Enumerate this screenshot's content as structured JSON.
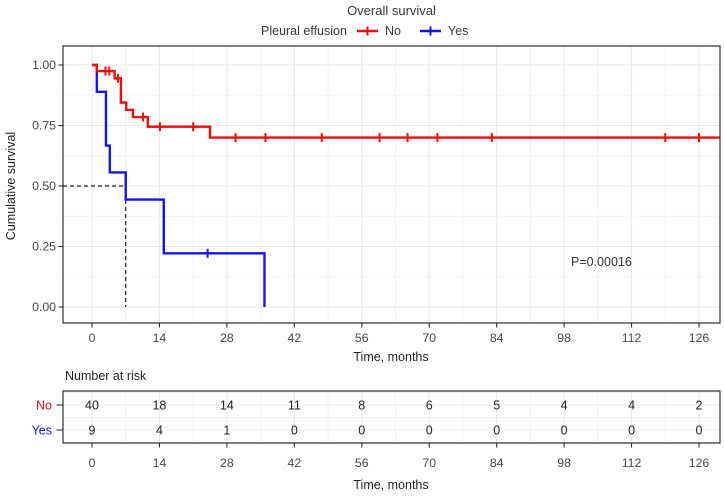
{
  "chart_data": {
    "type": "line",
    "subtype": "kaplan-meier-step-curve",
    "title": "Overall survival",
    "legend_title": "Pleural effusion",
    "legend_position": "top",
    "xlabel": "Time, months",
    "ylabel": "Cumulative survival",
    "x_ticks": [
      0,
      14,
      28,
      42,
      56,
      70,
      84,
      98,
      112,
      126
    ],
    "y_ticks": [
      0,
      0.25,
      0.5,
      0.75,
      1
    ],
    "y_tick_labels": [
      "0.00",
      "0.25",
      "0.50",
      "0.75",
      "1.00"
    ],
    "xlim": [
      -6,
      130.4
    ],
    "ylim": [
      0,
      1
    ],
    "grid": true,
    "pvalue_text": "P=0.00016",
    "median_line": {
      "time": 7,
      "survival": 0.5
    },
    "series": [
      {
        "name": "No",
        "color": "#f20d0d",
        "steps": [
          [
            0,
            1.0
          ],
          [
            1,
            0.975
          ],
          [
            4.7,
            0.945
          ],
          [
            6.0,
            0.845
          ],
          [
            7.1,
            0.815
          ],
          [
            8.5,
            0.785
          ],
          [
            11.6,
            0.745
          ],
          [
            24.5,
            0.7
          ]
        ],
        "end": 130.4,
        "censors": [
          [
            2.8,
            0.975
          ],
          [
            3.6,
            0.975
          ],
          [
            5.4,
            0.945
          ],
          [
            10.6,
            0.785
          ],
          [
            14.1,
            0.745
          ],
          [
            21,
            0.745
          ],
          [
            29.8,
            0.7
          ],
          [
            36,
            0.7
          ],
          [
            47.7,
            0.7
          ],
          [
            59.7,
            0.7
          ],
          [
            65.5,
            0.7
          ],
          [
            71.7,
            0.7
          ],
          [
            83,
            0.7
          ],
          [
            119,
            0.7
          ],
          [
            126,
            0.7
          ]
        ]
      },
      {
        "name": "Yes",
        "color": "#1414f0",
        "steps": [
          [
            0,
            1.0
          ],
          [
            1,
            0.889
          ],
          [
            2.9,
            0.667
          ],
          [
            3.7,
            0.556
          ],
          [
            7,
            0.444
          ],
          [
            14.9,
            0.222
          ],
          [
            35.8,
            0
          ]
        ],
        "end": 35.8,
        "censors": [
          [
            24,
            0.222
          ]
        ]
      }
    ],
    "risk_table": {
      "title": "Number at risk",
      "xlabel": "Time, months",
      "times": [
        0,
        14,
        28,
        42,
        56,
        70,
        84,
        98,
        112,
        126
      ],
      "rows": [
        {
          "name": "No",
          "color": "#f20d0d",
          "counts": [
            40,
            18,
            14,
            11,
            8,
            6,
            5,
            4,
            4,
            2
          ]
        },
        {
          "name": "Yes",
          "color": "#1414f0",
          "counts": [
            9,
            4,
            1,
            0,
            0,
            0,
            0,
            0,
            0,
            0
          ]
        }
      ]
    }
  }
}
